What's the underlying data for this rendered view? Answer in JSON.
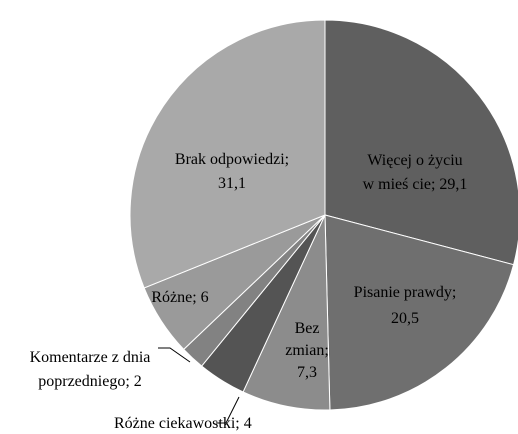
{
  "chart_data": {
    "type": "pie",
    "title": "",
    "slices": [
      {
        "name": "Więcej o życiu w mieście",
        "value": 29.1,
        "label_lines": [
          "Więcej o życiu",
          "w mieś cie; 29,1"
        ],
        "color": "#5f5f5f"
      },
      {
        "name": "Pisanie prawdy",
        "value": 20.5,
        "label_lines": [
          "Pisanie prawdy;",
          "20,5"
        ],
        "color": "#6f6f6f"
      },
      {
        "name": "Bez zmian",
        "value": 7.3,
        "label_lines": [
          "Bez",
          "zmian;",
          "7,3"
        ],
        "color": "#8c8c8c"
      },
      {
        "name": "Różne ciekawostki",
        "value": 4,
        "label_lines": [
          "Różne ciekawostki; 4"
        ],
        "color": "#545454"
      },
      {
        "name": "Komentarze z dnia poprzedniego",
        "value": 2,
        "label_lines": [
          "Komentarze z dnia",
          "poprzedniego; 2"
        ],
        "color": "#828282"
      },
      {
        "name": "Różne",
        "value": 6,
        "label_lines": [
          "Różne; 6"
        ],
        "color": "#9a9a9a"
      },
      {
        "name": "Brak odpowiedzi",
        "value": 31.1,
        "label_lines": [
          "Brak odpowiedzi;",
          "31,1"
        ],
        "color": "#a9a9a9"
      }
    ],
    "start_angle_deg": 0,
    "direction": "clockwise",
    "legend": "none"
  }
}
